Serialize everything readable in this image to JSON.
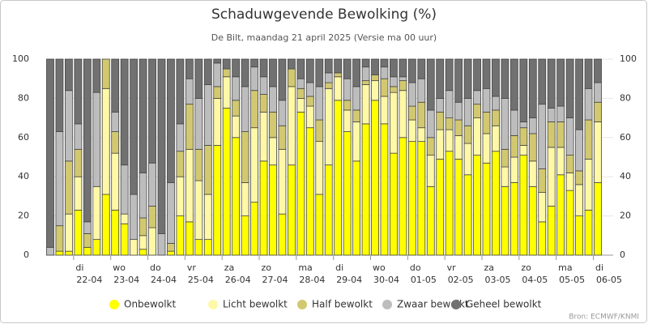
{
  "chart_data": {
    "type": "stacked_bar",
    "title": "Schaduwgevende Bewolking (%)",
    "subtitle": "De Bilt, maandag 21 april 2025 (Versie ma 00 uur)",
    "source": "Bron: ECMWF/KNMI",
    "categories": [
      null,
      null,
      null,
      "22-04",
      null,
      null,
      null,
      "23-04",
      null,
      null,
      null,
      "24-04",
      null,
      null,
      null,
      "25-04",
      null,
      null,
      null,
      "26-04",
      null,
      null,
      null,
      "27-04",
      null,
      null,
      null,
      "28-04",
      null,
      null,
      null,
      "29-04",
      null,
      null,
      null,
      "30-04",
      null,
      null,
      null,
      "01-05",
      null,
      null,
      null,
      "02-05",
      null,
      null,
      null,
      "03-05",
      null,
      null,
      null,
      "04-05",
      null,
      null,
      null,
      "05-05",
      null,
      null,
      null,
      "06-05"
    ],
    "weekdays": [
      null,
      null,
      null,
      "di",
      null,
      null,
      null,
      "wo",
      null,
      null,
      null,
      "do",
      null,
      null,
      null,
      "vr",
      null,
      null,
      null,
      "za",
      null,
      null,
      null,
      "zo",
      null,
      null,
      null,
      "ma",
      null,
      null,
      null,
      "di",
      null,
      null,
      null,
      "wo",
      null,
      null,
      null,
      "do",
      null,
      null,
      null,
      "vr",
      null,
      null,
      null,
      "za",
      null,
      null,
      null,
      "zo",
      null,
      null,
      null,
      "ma",
      null,
      null,
      null,
      "di"
    ],
    "series": [
      {
        "name": "Onbewolkt",
        "color": "#ffff00",
        "values": [
          0,
          2,
          2,
          23,
          4,
          8,
          31,
          23,
          16,
          0,
          3,
          0,
          0,
          2,
          20,
          17,
          8,
          8,
          56,
          75,
          60,
          20,
          27,
          48,
          46,
          21,
          46,
          73,
          65,
          31,
          46,
          79,
          63,
          48,
          67,
          79,
          67,
          52,
          60,
          58,
          58,
          35,
          49,
          53,
          49,
          41,
          51,
          47,
          53,
          35,
          37,
          51,
          35,
          17,
          25,
          41,
          33,
          20,
          23,
          37
        ]
      },
      {
        "name": "Licht bewolkt",
        "color": "#fff8a6",
        "values": [
          0,
          0,
          19,
          17,
          0,
          27,
          54,
          29,
          5,
          8,
          7,
          14,
          0,
          0,
          20,
          37,
          30,
          23,
          24,
          16,
          11,
          17,
          38,
          25,
          14,
          33,
          40,
          7,
          11,
          27,
          39,
          12,
          11,
          20,
          20,
          10,
          14,
          31,
          24,
          11,
          7,
          16,
          15,
          11,
          12,
          16,
          19,
          15,
          13,
          10,
          13,
          5,
          13,
          15,
          30,
          14,
          9,
          16,
          26,
          31
        ]
      },
      {
        "name": "Half bewolkt",
        "color": "#d2c870",
        "values": [
          0,
          13,
          27,
          14,
          7,
          0,
          15,
          11,
          0,
          0,
          9,
          11,
          0,
          4,
          13,
          23,
          16,
          25,
          6,
          4,
          8,
          26,
          19,
          9,
          13,
          12,
          9,
          5,
          5,
          11,
          3,
          2,
          5,
          6,
          2,
          3,
          9,
          3,
          5,
          7,
          13,
          9,
          9,
          6,
          8,
          9,
          7,
          11,
          8,
          9,
          11,
          9,
          14,
          12,
          13,
          13,
          9,
          7,
          20,
          10
        ]
      },
      {
        "name": "Zwaar bewolkt",
        "color": "#bdbdbd",
        "values": [
          4,
          48,
          36,
          13,
          6,
          48,
          0,
          10,
          25,
          23,
          23,
          22,
          11,
          31,
          14,
          13,
          26,
          31,
          12,
          0,
          12,
          23,
          12,
          9,
          13,
          13,
          0,
          5,
          7,
          17,
          5,
          0,
          11,
          12,
          7,
          0,
          6,
          5,
          2,
          12,
          12,
          14,
          7,
          14,
          9,
          14,
          7,
          12,
          7,
          26,
          13,
          3,
          8,
          33,
          7,
          8,
          19,
          21,
          16,
          10
        ]
      },
      {
        "name": "Geheel bewolkt",
        "color": "#717171",
        "values": [
          96,
          37,
          16,
          33,
          83,
          17,
          0,
          27,
          54,
          69,
          58,
          53,
          89,
          63,
          33,
          10,
          20,
          13,
          2,
          5,
          9,
          14,
          4,
          9,
          14,
          21,
          5,
          10,
          12,
          14,
          7,
          7,
          10,
          14,
          4,
          8,
          4,
          9,
          9,
          12,
          10,
          26,
          20,
          16,
          22,
          20,
          16,
          15,
          19,
          20,
          26,
          32,
          30,
          23,
          25,
          24,
          30,
          36,
          15,
          12
        ]
      }
    ],
    "ylim": [
      0,
      100
    ],
    "yticks": [
      0,
      20,
      40,
      60,
      80,
      100
    ],
    "y2lim": [
      0,
      100
    ],
    "y2ticks": [
      0,
      20,
      40,
      60,
      80,
      100
    ],
    "grid": true
  }
}
